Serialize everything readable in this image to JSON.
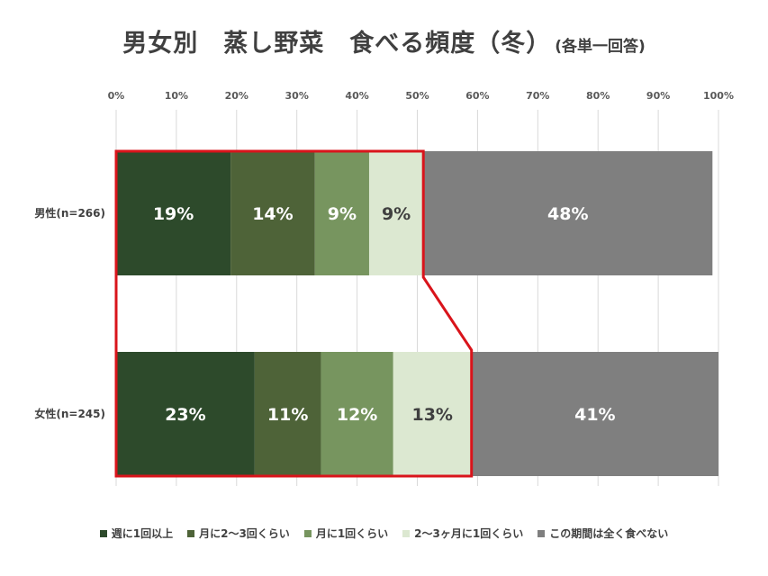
{
  "chart_data": {
    "type": "bar",
    "orientation": "horizontal",
    "stacked": true,
    "title": "男女別　蒸し野菜　食べる頻度（冬）",
    "subtitle": "(各単一回答)",
    "categories": [
      "男性(n=266)",
      "女性(n=245)"
    ],
    "series": [
      {
        "name": "週に1回以上",
        "values": [
          19,
          23
        ],
        "color": "#2d4a2b"
      },
      {
        "name": "月に2〜3回くらい",
        "values": [
          14,
          11
        ],
        "color": "#4e6338"
      },
      {
        "name": "月に1回くらい",
        "values": [
          9,
          12
        ],
        "color": "#77955f"
      },
      {
        "name": "2〜3ヶ月に1回くらい",
        "values": [
          9,
          13
        ],
        "color": "#dce8d1"
      },
      {
        "name": "この期間は全く食べない",
        "values": [
          48,
          41
        ],
        "color": "#7f7f7f"
      }
    ],
    "data_labels": [
      [
        "19%",
        "14%",
        "9%",
        "9%",
        "48%"
      ],
      [
        "23%",
        "11%",
        "12%",
        "13%",
        "41%"
      ]
    ],
    "xlim": [
      0,
      100
    ],
    "x_ticks": [
      "0%",
      "10%",
      "20%",
      "30%",
      "40%",
      "50%",
      "60%",
      "70%",
      "80%",
      "90%",
      "100%"
    ],
    "grid": true,
    "legend_position": "bottom",
    "highlight": {
      "series_range": [
        0,
        3
      ],
      "color": "#d9141b"
    },
    "label_colors": {
      "light": "#ffffff",
      "dark": "#404040"
    }
  }
}
